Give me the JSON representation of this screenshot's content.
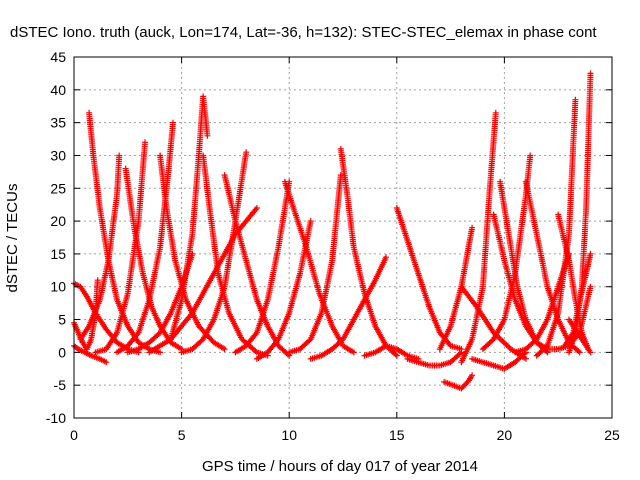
{
  "chart_data": {
    "type": "scatter",
    "title": "dSTEC Iono. truth (auck, Lon=174, Lat=-36, h=132): STEC-STEC_elemax in phase cont",
    "xlabel": "GPS time / hours of day 017 of year 2014",
    "ylabel": "dSTEC  / TECUs",
    "xlim": [
      0,
      25
    ],
    "ylim": [
      -10,
      45
    ],
    "xticks": [
      0,
      5,
      10,
      15,
      20,
      25
    ],
    "yticks": [
      -10,
      -5,
      0,
      5,
      10,
      15,
      20,
      25,
      30,
      35,
      40,
      45
    ],
    "grid": true,
    "marker": "plus",
    "color": "#ff0000",
    "series": [
      {
        "x": [
          0.0,
          0.3,
          0.6,
          1.0,
          1.5,
          2.0,
          2.5,
          3.0
        ],
        "y": [
          10.5,
          10.0,
          8.5,
          6.0,
          3.5,
          1.5,
          0.5,
          0.0
        ]
      },
      {
        "x": [
          0.0,
          0.2,
          0.4,
          0.6,
          0.8,
          1.0,
          1.1
        ],
        "y": [
          4.5,
          3.0,
          1.5,
          0.5,
          2.0,
          6.0,
          11.0
        ]
      },
      {
        "x": [
          0.0,
          0.2,
          0.5,
          0.8,
          1.2,
          1.5
        ],
        "y": [
          1.0,
          0.5,
          0.0,
          -0.5,
          -1.0,
          -1.5
        ]
      },
      {
        "x": [
          0.7,
          0.9,
          1.2,
          1.6,
          2.0,
          2.5,
          3.0,
          3.5,
          4.0
        ],
        "y": [
          36.5,
          30.0,
          22.0,
          14.0,
          8.0,
          4.0,
          1.5,
          0.5,
          0.0
        ]
      },
      {
        "x": [
          0.3,
          0.7,
          1.2,
          1.6,
          2.0,
          2.1
        ],
        "y": [
          2.0,
          4.0,
          8.0,
          14.0,
          24.0,
          30.0
        ]
      },
      {
        "x": [
          1.0,
          1.5,
          2.0,
          2.5,
          3.0,
          3.3
        ],
        "y": [
          0.0,
          0.5,
          3.0,
          9.0,
          20.0,
          32.0
        ]
      },
      {
        "x": [
          2.4,
          2.8,
          3.2,
          3.6,
          4.0,
          4.5,
          5.0
        ],
        "y": [
          28.0,
          19.0,
          12.0,
          7.0,
          4.0,
          1.5,
          0.5
        ]
      },
      {
        "x": [
          2.0,
          2.5,
          3.0,
          3.5,
          4.0,
          4.4,
          4.6
        ],
        "y": [
          0.0,
          1.0,
          3.0,
          8.0,
          16.0,
          28.0,
          35.0
        ]
      },
      {
        "x": [
          2.5,
          3.0,
          3.5,
          4.0,
          4.5,
          5.0,
          5.5
        ],
        "y": [
          0.0,
          0.5,
          1.5,
          3.0,
          6.0,
          10.0,
          15.0
        ]
      },
      {
        "x": [
          4.0,
          4.3,
          4.7,
          5.2,
          5.8,
          6.5,
          7.0
        ],
        "y": [
          30.0,
          22.0,
          14.0,
          8.0,
          4.0,
          1.5,
          0.5
        ]
      },
      {
        "x": [
          3.5,
          4.5,
          5.5,
          6.5,
          7.5,
          8.5
        ],
        "y": [
          0.0,
          2.0,
          6.0,
          12.0,
          18.0,
          22.0
        ]
      },
      {
        "x": [
          4.5,
          5.0,
          5.5,
          5.8,
          6.0,
          6.2
        ],
        "y": [
          2.0,
          8.0,
          18.0,
          30.0,
          39.0,
          33.0
        ]
      },
      {
        "x": [
          5.0,
          5.5,
          6.0,
          6.5,
          7.0,
          7.5,
          8.0
        ],
        "y": [
          0.0,
          0.5,
          2.0,
          5.0,
          10.0,
          20.0,
          30.5
        ]
      },
      {
        "x": [
          6.0,
          6.3,
          6.7,
          7.2,
          7.8,
          8.5,
          9.0
        ],
        "y": [
          30.0,
          22.0,
          12.0,
          6.0,
          2.0,
          0.0,
          -0.5
        ]
      },
      {
        "x": [
          7.0,
          7.5,
          8.0,
          8.5,
          9.0,
          9.5,
          10.0
        ],
        "y": [
          27.0,
          20.0,
          14.0,
          8.0,
          4.0,
          1.0,
          -0.5
        ]
      },
      {
        "x": [
          7.5,
          8.0,
          8.5,
          9.0,
          9.5,
          10.0
        ],
        "y": [
          0.0,
          1.0,
          3.0,
          8.0,
          16.0,
          26.0
        ]
      },
      {
        "x": [
          8.5,
          9.0,
          9.5,
          10.0,
          10.5,
          11.0
        ],
        "y": [
          -1.0,
          0.0,
          2.0,
          6.0,
          12.0,
          20.0
        ]
      },
      {
        "x": [
          9.8,
          10.2,
          10.8,
          11.4,
          12.0,
          12.5,
          13.0
        ],
        "y": [
          26.0,
          22.0,
          16.0,
          9.0,
          4.0,
          1.0,
          0.0
        ]
      },
      {
        "x": [
          10.0,
          10.5,
          11.0,
          11.5,
          12.0,
          12.4
        ],
        "y": [
          0.0,
          0.5,
          2.0,
          6.0,
          14.0,
          27.0
        ]
      },
      {
        "x": [
          11.0,
          11.5,
          12.0,
          12.5,
          13.0,
          13.5,
          14.0,
          14.5
        ],
        "y": [
          -1.0,
          -0.5,
          0.5,
          2.0,
          5.0,
          8.0,
          11.0,
          14.5
        ]
      },
      {
        "x": [
          12.4,
          12.7,
          13.0,
          13.5,
          14.0,
          14.5,
          15.0
        ],
        "y": [
          31.0,
          24.0,
          16.0,
          9.0,
          4.0,
          1.0,
          -0.5
        ]
      },
      {
        "x": [
          13.5,
          14.0,
          14.5,
          15.0,
          15.5,
          16.0
        ],
        "y": [
          -0.5,
          0.0,
          1.0,
          0.5,
          -0.5,
          -1.0
        ]
      },
      {
        "x": [
          15.0,
          15.5,
          16.0,
          16.5,
          17.0,
          17.5,
          18.0
        ],
        "y": [
          22.0,
          17.0,
          12.0,
          7.0,
          3.0,
          1.0,
          0.5
        ]
      },
      {
        "x": [
          15.5,
          16.0,
          16.5,
          17.0,
          17.5,
          18.0
        ],
        "y": [
          -1.0,
          -1.5,
          -2.0,
          -2.0,
          -1.5,
          0.0
        ]
      },
      {
        "x": [
          17.0,
          17.5,
          18.0,
          18.5
        ],
        "y": [
          0.5,
          4.0,
          10.0,
          19.0
        ]
      },
      {
        "x": [
          17.2,
          17.6,
          18.0,
          18.3,
          18.5
        ],
        "y": [
          -4.5,
          -5.0,
          -5.5,
          -4.5,
          -3.5
        ]
      },
      {
        "x": [
          18.0,
          18.5,
          19.0,
          19.3,
          19.6
        ],
        "y": [
          -1.5,
          2.0,
          10.0,
          24.0,
          36.5
        ]
      },
      {
        "x": [
          18.0,
          18.7,
          19.5,
          20.3,
          21.0
        ],
        "y": [
          10.0,
          7.0,
          3.0,
          0.5,
          -1.0
        ]
      },
      {
        "x": [
          18.5,
          19.0,
          19.5,
          20.0,
          20.5,
          21.0
        ],
        "y": [
          -1.0,
          -1.5,
          -2.0,
          -2.5,
          -1.5,
          0.0
        ]
      },
      {
        "x": [
          19.5,
          20.0,
          20.5,
          21.0,
          21.5,
          22.0
        ],
        "y": [
          21.0,
          14.0,
          8.0,
          4.0,
          1.5,
          0.5
        ]
      },
      {
        "x": [
          19.0,
          19.5,
          20.0,
          20.5,
          21.0,
          21.2
        ],
        "y": [
          0.5,
          2.0,
          5.0,
          12.0,
          24.0,
          30.0
        ]
      },
      {
        "x": [
          19.8,
          20.2,
          20.6,
          21.0,
          21.5,
          22.0
        ],
        "y": [
          26.0,
          18.0,
          10.0,
          5.0,
          1.5,
          0.0
        ]
      },
      {
        "x": [
          20.5,
          21.0,
          21.5,
          22.0,
          22.5,
          23.0
        ],
        "y": [
          0.0,
          0.5,
          2.0,
          5.0,
          10.0,
          15.0
        ]
      },
      {
        "x": [
          21.0,
          21.5,
          22.0,
          22.5,
          23.0,
          23.5
        ],
        "y": [
          26.0,
          18.0,
          10.0,
          5.0,
          1.5,
          0.0
        ]
      },
      {
        "x": [
          21.5,
          22.0,
          22.5,
          23.0,
          23.3
        ],
        "y": [
          -0.5,
          1.0,
          6.0,
          18.0,
          38.5
        ]
      },
      {
        "x": [
          22.5,
          23.0,
          23.3,
          23.6,
          23.9
        ],
        "y": [
          21.0,
          14.0,
          8.0,
          3.0,
          0.5
        ]
      },
      {
        "x": [
          22.0,
          22.5,
          23.0,
          23.5,
          24.0
        ],
        "y": [
          0.5,
          0.5,
          1.0,
          3.0,
          10.0
        ]
      },
      {
        "x": [
          23.0,
          23.3,
          23.6,
          23.8,
          24.0
        ],
        "y": [
          0.0,
          3.0,
          10.0,
          22.0,
          42.5
        ]
      },
      {
        "x": [
          22.8,
          23.2,
          23.5,
          23.8,
          24.0
        ],
        "y": [
          1.0,
          3.0,
          8.0,
          12.0,
          15.0
        ]
      },
      {
        "x": [
          23.0,
          23.4,
          23.8,
          24.0
        ],
        "y": [
          5.0,
          3.0,
          1.0,
          0.0
        ]
      }
    ]
  }
}
